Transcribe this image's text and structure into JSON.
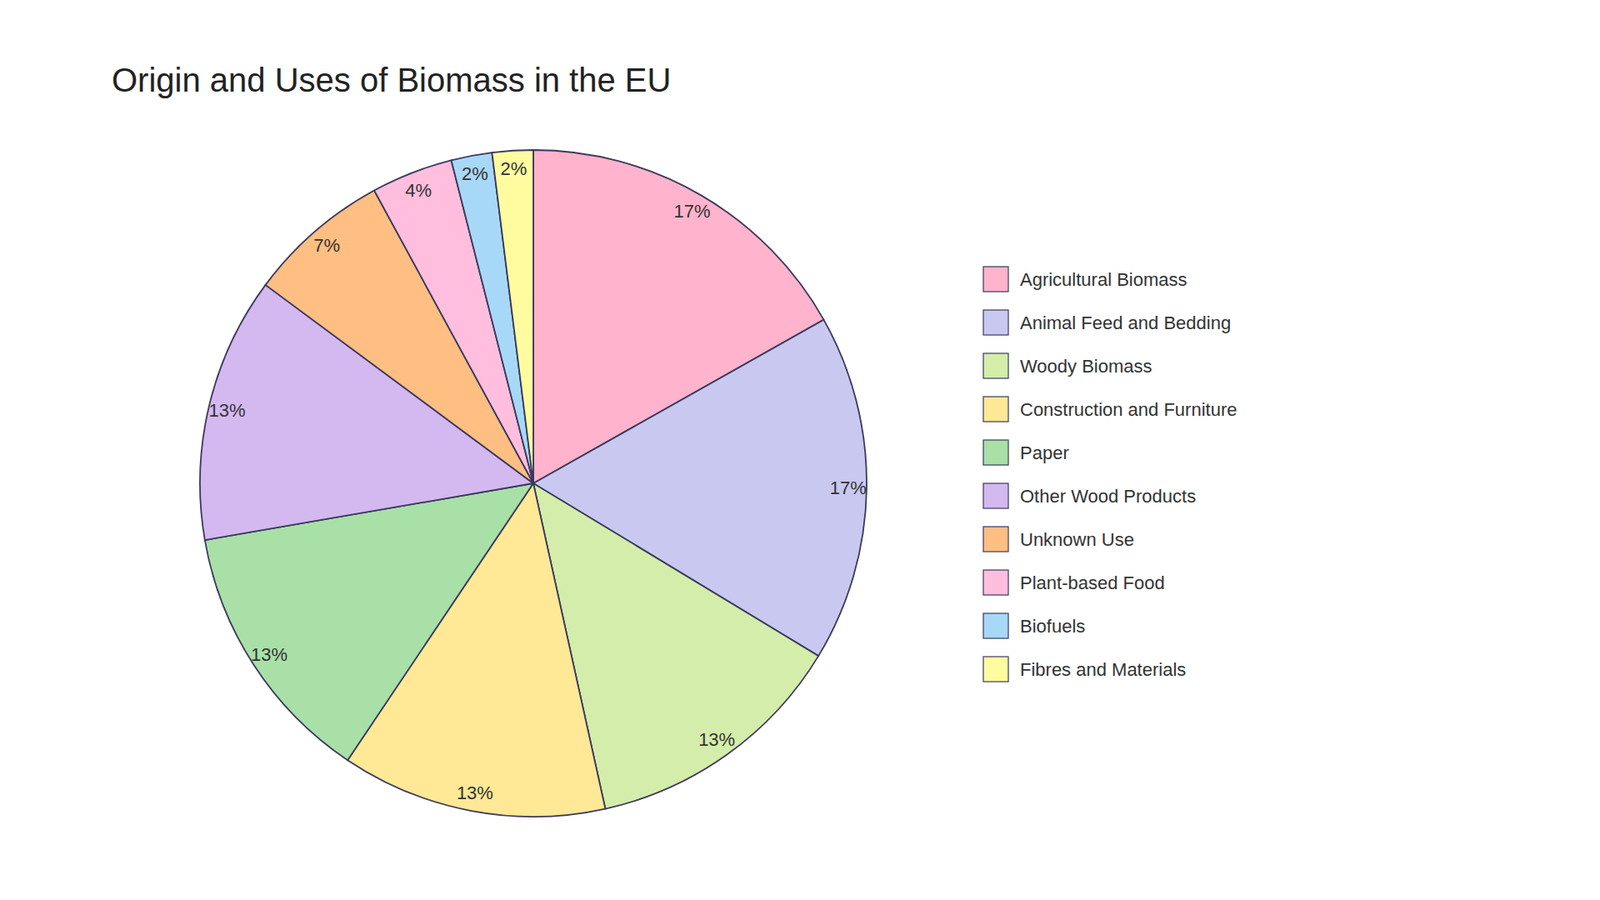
{
  "chart_data": {
    "type": "pie",
    "title": "Origin and Uses of Biomass in the EU",
    "categories": [
      "Agricultural Biomass",
      "Animal Feed and Bedding",
      "Woody Biomass",
      "Construction and Furniture",
      "Paper",
      "Other Wood Products",
      "Unknown Use",
      "Plant-based Food",
      "Biofuels",
      "Fibres and Materials"
    ],
    "values": [
      17,
      17,
      13,
      13,
      13,
      13,
      7,
      4,
      2,
      2
    ],
    "value_labels": [
      "17%",
      "17%",
      "13%",
      "13%",
      "13%",
      "13%",
      "7%",
      "4%",
      "2%",
      "2%"
    ],
    "colors": [
      "#FFB3CC",
      "#C8C8F0",
      "#D4EDAA",
      "#FFE896",
      "#A8E0A8",
      "#D4B8F0",
      "#FFBE82",
      "#FFBEDD",
      "#A8D8F8",
      "#FFFCA0"
    ],
    "data_labels": true,
    "legend": "right"
  }
}
